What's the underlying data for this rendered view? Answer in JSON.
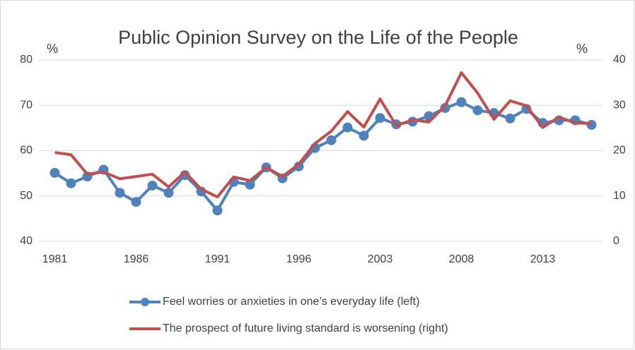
{
  "chart_data": {
    "type": "line",
    "title": "Public Opinion Survey on the Life of the People",
    "y_label": "%",
    "y2_label": "%",
    "categories": [
      "1981",
      null,
      null,
      null,
      null,
      "1986",
      null,
      null,
      null,
      null,
      "1991",
      null,
      null,
      null,
      null,
      "1996",
      null,
      null,
      null,
      null,
      "2003",
      null,
      null,
      null,
      null,
      "2008",
      null,
      null,
      null,
      null,
      "2013",
      null,
      null,
      null
    ],
    "ylim": [
      40,
      80
    ],
    "yticks": [
      40,
      50,
      60,
      70,
      80
    ],
    "y2lim": [
      0,
      40
    ],
    "y2ticks": [
      0,
      10,
      20,
      30,
      40
    ],
    "grid": true,
    "legend": "bottom",
    "series": [
      {
        "name": "Feel worries or anxieties in one’s everyday life (left)",
        "color": "#4f81bd",
        "markers": true,
        "values": [
          55.1,
          52.8,
          54.3,
          55.8,
          50.7,
          48.7,
          52.3,
          50.7,
          54.6,
          51.0,
          46.8,
          53.1,
          52.5,
          56.3,
          53.9,
          56.5,
          60.6,
          62.3,
          65.1,
          63.3,
          67.2,
          65.8,
          66.4,
          67.6,
          69.4,
          70.7,
          68.9,
          68.3,
          67.1,
          69.2,
          66.1,
          66.7,
          66.7,
          65.7
        ]
      },
      {
        "name": "The prospect of future living standard is worsening (right)",
        "color": "#c0504d",
        "markers": false,
        "axis": "y2",
        "values": [
          19.6,
          19.1,
          14.8,
          15.3,
          13.8,
          14.3,
          14.8,
          12.0,
          15.3,
          11.5,
          9.8,
          14.2,
          13.4,
          16.3,
          14.3,
          17.0,
          21.6,
          24.3,
          28.6,
          25.2,
          31.4,
          25.5,
          26.8,
          26.3,
          29.9,
          37.2,
          32.7,
          26.9,
          31.0,
          29.9,
          25.1,
          27.4,
          26.1,
          26.0
        ]
      }
    ]
  }
}
